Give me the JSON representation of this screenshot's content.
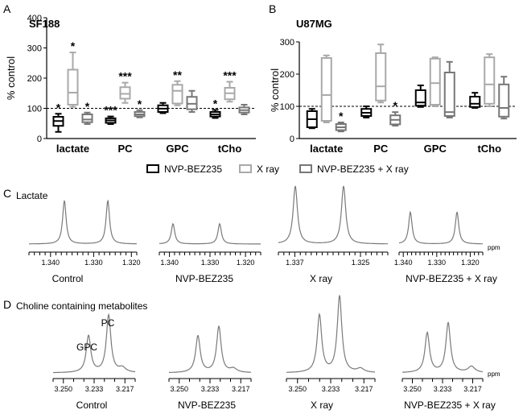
{
  "colors": {
    "nvp": "#000000",
    "xray": "#a9a9a9",
    "combo": "#777777",
    "spectrum": "#7a7a7a"
  },
  "legend": {
    "entries": [
      {
        "name": "NVP-BEZ235",
        "color": "#000000"
      },
      {
        "name": "X ray",
        "color": "#a9a9a9"
      },
      {
        "name": "NVP-BEZ235 + X ray",
        "color": "#777777"
      }
    ]
  },
  "panels": {
    "A": {
      "letter": "A",
      "title": "SF188"
    },
    "B": {
      "letter": "B",
      "title": "U87MG"
    },
    "C": {
      "letter": "C",
      "title": "Lactate"
    },
    "D": {
      "letter": "D",
      "title": "Choline containing metabolites"
    }
  },
  "chart_data": [
    {
      "id": "A",
      "type": "box",
      "title": "SF188",
      "ylabel": "% control",
      "ylim": [
        0,
        400
      ],
      "yticks": [
        0,
        100,
        200,
        300,
        400
      ],
      "reference_line": 100,
      "categories": [
        "lactate",
        "PC",
        "GPC",
        "tCho"
      ],
      "series": [
        {
          "name": "NVP-BEZ235",
          "boxes": [
            {
              "min": 22,
              "q1": 42,
              "median": 58,
              "q3": 72,
              "max": 82,
              "sig": "*"
            },
            {
              "min": 48,
              "q1": 52,
              "median": 60,
              "q3": 67,
              "max": 73,
              "sig": "***"
            },
            {
              "min": 84,
              "q1": 88,
              "median": 99,
              "q3": 110,
              "max": 118,
              "sig": ""
            },
            {
              "min": 68,
              "q1": 73,
              "median": 80,
              "q3": 88,
              "max": 95,
              "sig": "*"
            }
          ]
        },
        {
          "name": "X ray",
          "boxes": [
            {
              "min": 105,
              "q1": 112,
              "median": 152,
              "q3": 228,
              "max": 285,
              "sig": "*"
            },
            {
              "min": 118,
              "q1": 132,
              "median": 148,
              "q3": 170,
              "max": 185,
              "sig": "***"
            },
            {
              "min": 110,
              "q1": 116,
              "median": 158,
              "q3": 178,
              "max": 190,
              "sig": "**"
            },
            {
              "min": 122,
              "q1": 130,
              "median": 150,
              "q3": 168,
              "max": 188,
              "sig": "***"
            }
          ]
        },
        {
          "name": "NVP-BEZ235 + X ray",
          "boxes": [
            {
              "min": 48,
              "q1": 54,
              "median": 63,
              "q3": 80,
              "max": 86,
              "sig": "*"
            },
            {
              "min": 70,
              "q1": 74,
              "median": 80,
              "q3": 88,
              "max": 94,
              "sig": "*"
            },
            {
              "min": 88,
              "q1": 97,
              "median": 115,
              "q3": 138,
              "max": 158,
              "sig": ""
            },
            {
              "min": 80,
              "q1": 86,
              "median": 94,
              "q3": 103,
              "max": 112,
              "sig": ""
            }
          ]
        }
      ]
    },
    {
      "id": "B",
      "type": "box",
      "title": "U87MG",
      "ylabel": "% control",
      "ylim": [
        0,
        300
      ],
      "yticks": [
        0,
        100,
        200,
        300
      ],
      "reference_line": 100,
      "categories": [
        "lactate",
        "PC",
        "GPC",
        "tCho"
      ],
      "series": [
        {
          "name": "NVP-BEZ235",
          "boxes": [
            {
              "min": 32,
              "q1": 35,
              "median": 60,
              "q3": 85,
              "max": 92,
              "sig": ""
            },
            {
              "min": 65,
              "q1": 70,
              "median": 80,
              "q3": 92,
              "max": 100,
              "sig": ""
            },
            {
              "min": 98,
              "q1": 102,
              "median": 112,
              "q3": 150,
              "max": 165,
              "sig": ""
            },
            {
              "min": 95,
              "q1": 98,
              "median": 108,
              "q3": 130,
              "max": 142,
              "sig": ""
            }
          ]
        },
        {
          "name": "X ray",
          "boxes": [
            {
              "min": 50,
              "q1": 55,
              "median": 135,
              "q3": 250,
              "max": 258,
              "sig": ""
            },
            {
              "min": 112,
              "q1": 118,
              "median": 162,
              "q3": 265,
              "max": 292,
              "sig": ""
            },
            {
              "min": 100,
              "q1": 105,
              "median": 172,
              "q3": 248,
              "max": 252,
              "sig": ""
            },
            {
              "min": 100,
              "q1": 108,
              "median": 168,
              "q3": 252,
              "max": 262,
              "sig": ""
            }
          ]
        },
        {
          "name": "NVP-BEZ235 + X ray",
          "boxes": [
            {
              "min": 22,
              "q1": 26,
              "median": 35,
              "q3": 45,
              "max": 50,
              "sig": "*"
            },
            {
              "min": 40,
              "q1": 44,
              "median": 58,
              "q3": 72,
              "max": 82,
              "sig": "*"
            },
            {
              "min": 65,
              "q1": 70,
              "median": 82,
              "q3": 205,
              "max": 238,
              "sig": ""
            },
            {
              "min": 62,
              "q1": 68,
              "median": 95,
              "q3": 168,
              "max": 192,
              "sig": ""
            }
          ]
        }
      ]
    },
    {
      "id": "C",
      "type": "line",
      "title": "Lactate",
      "xunit": "ppm",
      "spectra": [
        {
          "label": "Control",
          "ticklabels": [
            "1.340",
            "1.330",
            "1.320"
          ],
          "peak_heights": [
            0.75,
            0.75
          ]
        },
        {
          "label": "NVP-BEZ235",
          "ticklabels": [
            "1.340",
            "1.330",
            "1.320"
          ],
          "peak_heights": [
            0.35,
            0.35
          ]
        },
        {
          "label": "X ray",
          "ticklabels": [
            "1.337",
            "1.325"
          ],
          "peak_heights": [
            1.0,
            1.0
          ]
        },
        {
          "label": "NVP-BEZ235 + X ray",
          "ticklabels": [
            "1.340",
            "1.330",
            "1.320"
          ],
          "peak_heights": [
            0.55,
            0.55
          ]
        }
      ]
    },
    {
      "id": "D",
      "type": "line",
      "title": "Choline containing metabolites",
      "xunit": "ppm",
      "peak_labels": [
        "GPC",
        "PC"
      ],
      "spectra": [
        {
          "label": "Control",
          "ticklabels": [
            "3.250",
            "3.233",
            "3.217"
          ],
          "peak_heights": [
            0.48,
            0.75
          ]
        },
        {
          "label": "NVP-BEZ235",
          "ticklabels": [
            "3.250",
            "3.233",
            "3.217"
          ],
          "peak_heights": [
            0.48,
            0.6
          ]
        },
        {
          "label": "X ray",
          "ticklabels": [
            "3.250",
            "3.233",
            "3.217"
          ],
          "peak_heights": [
            0.75,
            1.0
          ]
        },
        {
          "label": "NVP-BEZ235 + X ray",
          "ticklabels": [
            "3.250",
            "3.233",
            "3.217"
          ],
          "peak_heights": [
            0.52,
            0.65
          ]
        }
      ]
    }
  ]
}
